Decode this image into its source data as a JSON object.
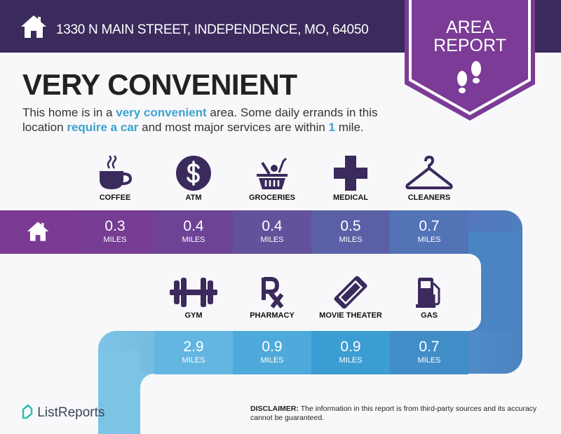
{
  "header": {
    "address": "1330 N MAIN STREET, INDEPENDENCE, MO, 64050",
    "badge_line1": "AREA",
    "badge_line2": "REPORT"
  },
  "summary": {
    "title": "VERY CONVENIENT",
    "text_1": "This home is in a ",
    "hl_1": "very convenient",
    "text_2": " area. Some daily errands in this location ",
    "hl_2": "require a car",
    "text_3": " and most major services are within ",
    "hl_3": "1",
    "text_4": " mile."
  },
  "row1": [
    {
      "icon": "coffee-icon",
      "label": "COFFEE",
      "value": "0.3",
      "unit": "MILES"
    },
    {
      "icon": "atm-icon",
      "label": "ATM",
      "value": "0.4",
      "unit": "MILES"
    },
    {
      "icon": "groceries-icon",
      "label": "GROCERIES",
      "value": "0.4",
      "unit": "MILES"
    },
    {
      "icon": "medical-icon",
      "label": "MEDICAL",
      "value": "0.5",
      "unit": "MILES"
    },
    {
      "icon": "hanger-icon",
      "label": "CLEANERS",
      "value": "0.7",
      "unit": "MILES"
    }
  ],
  "row2": [
    {
      "icon": "dumbbell-icon",
      "label": "GYM",
      "value": "2.9",
      "unit": "MILES"
    },
    {
      "icon": "rx-icon",
      "label": "PHARMACY",
      "value": "0.9",
      "unit": "MILES"
    },
    {
      "icon": "ticket-icon",
      "label": "MOVIE THEATER",
      "value": "0.9",
      "unit": "MILES"
    },
    {
      "icon": "gas-pump-icon",
      "label": "GAS",
      "value": "0.7",
      "unit": "MILES"
    }
  ],
  "footer": {
    "logo": "ListReports",
    "disclaimer_label": "DISCLAIMER:",
    "disclaimer": " The information in this report is from third-party sources and its accuracy cannot be guaranteed."
  },
  "colors": {
    "header": "#3b2a5c",
    "badge": "#7b3b96",
    "accent": "#3ba3cf",
    "icon": "#3b2a5c"
  }
}
